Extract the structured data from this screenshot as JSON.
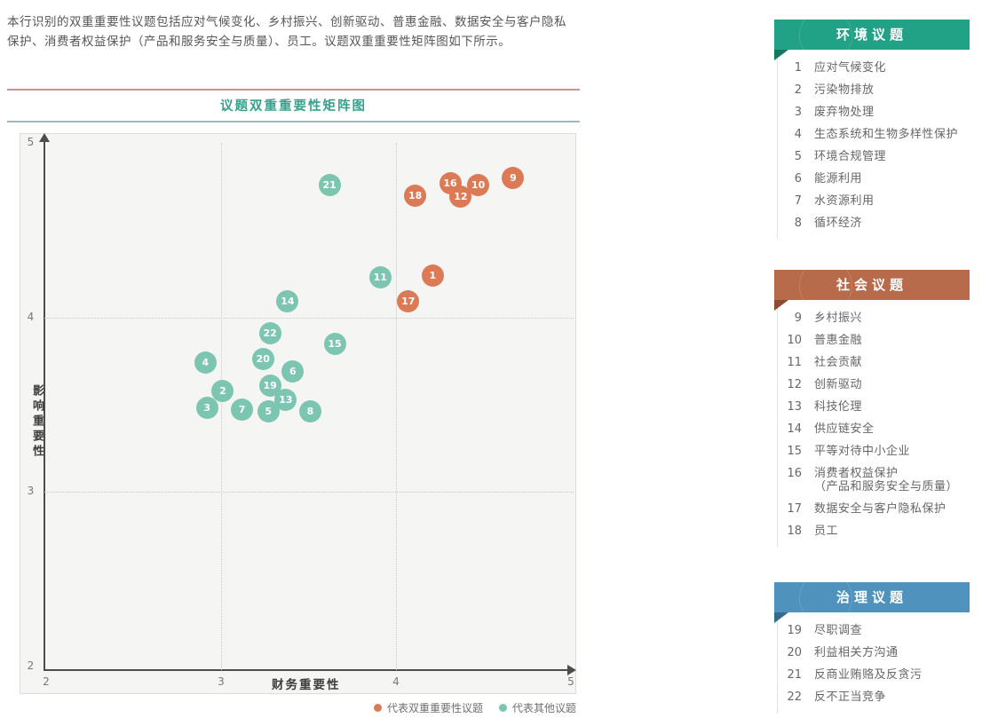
{
  "intro": "本行识别的双重重要性议题包括应对气候变化、乡村振兴、创新驱动、普惠金融、数据安全与客户隐私保护、消费者权益保护（产品和服务安全与质量）、员工。议题双重重要性矩阵图如下所示。",
  "colors": {
    "title_text": "#38a08b",
    "title_rule_top": "#cb9595",
    "title_rule_bottom": "#9eb8bf",
    "plot_background": "#f5f5f3",
    "dual_materiality": "#dc7a56",
    "other_topics": "#7cc5b1",
    "env_header": "#21a185",
    "social_header": "#b76b4a",
    "governance_header": "#4e92bd"
  },
  "chart_data": {
    "type": "scatter",
    "title": "议题双重重要性矩阵图",
    "xlabel": "财务重要性",
    "ylabel": "影响重要性",
    "xlim": [
      2,
      5
    ],
    "ylim": [
      2,
      5
    ],
    "xticks": [
      2,
      3,
      4,
      5
    ],
    "yticks": [
      2,
      3,
      4,
      5
    ],
    "grid": {
      "x_dashed": [
        3,
        4
      ],
      "y_dashed": [
        3,
        4
      ]
    },
    "legend_position": "bottom-right",
    "series": [
      {
        "name": "代表双重重要性议题",
        "color": "#dc7a56",
        "points": [
          {
            "id": 1,
            "x": 4.21,
            "y": 4.24
          },
          {
            "id": 9,
            "x": 4.67,
            "y": 4.8
          },
          {
            "id": 10,
            "x": 4.47,
            "y": 4.76
          },
          {
            "id": 16,
            "x": 4.31,
            "y": 4.77
          },
          {
            "id": 12,
            "x": 4.37,
            "y": 4.69
          },
          {
            "id": 17,
            "x": 4.07,
            "y": 4.09
          },
          {
            "id": 18,
            "x": 4.11,
            "y": 4.7
          }
        ]
      },
      {
        "name": "代表其他议题",
        "color": "#7cc5b1",
        "points": [
          {
            "id": 2,
            "x": 3.01,
            "y": 3.58
          },
          {
            "id": 3,
            "x": 2.92,
            "y": 3.48
          },
          {
            "id": 4,
            "x": 2.91,
            "y": 3.74
          },
          {
            "id": 5,
            "x": 3.27,
            "y": 3.46
          },
          {
            "id": 6,
            "x": 3.41,
            "y": 3.69
          },
          {
            "id": 7,
            "x": 3.12,
            "y": 3.47
          },
          {
            "id": 8,
            "x": 3.51,
            "y": 3.46
          },
          {
            "id": 11,
            "x": 3.91,
            "y": 4.23
          },
          {
            "id": 13,
            "x": 3.37,
            "y": 3.53
          },
          {
            "id": 14,
            "x": 3.38,
            "y": 4.09
          },
          {
            "id": 15,
            "x": 3.65,
            "y": 3.85
          },
          {
            "id": 19,
            "x": 3.28,
            "y": 3.61
          },
          {
            "id": 20,
            "x": 3.24,
            "y": 3.76
          },
          {
            "id": 21,
            "x": 3.62,
            "y": 4.76
          },
          {
            "id": 22,
            "x": 3.28,
            "y": 3.91
          }
        ]
      }
    ]
  },
  "legend": [
    {
      "label": "代表双重重要性议题",
      "color": "#dc7a56"
    },
    {
      "label": "代表其他议题",
      "color": "#7cc5b1"
    }
  ],
  "sidebar": {
    "sections": [
      {
        "title": "环境议题",
        "color": "#21a185",
        "fold_color": "#14785f",
        "items": [
          {
            "num": "1",
            "label": "应对气候变化"
          },
          {
            "num": "2",
            "label": "污染物排放"
          },
          {
            "num": "3",
            "label": "废弃物处理"
          },
          {
            "num": "4",
            "label": "生态系统和生物多样性保护"
          },
          {
            "num": "5",
            "label": "环境合规管理"
          },
          {
            "num": "6",
            "label": "能源利用"
          },
          {
            "num": "7",
            "label": "水资源利用"
          },
          {
            "num": "8",
            "label": "循环经济"
          }
        ]
      },
      {
        "title": "社会议题",
        "color": "#b76b4a",
        "fold_color": "#8a4c33",
        "items": [
          {
            "num": "9",
            "label": "乡村振兴"
          },
          {
            "num": "10",
            "label": "普惠金融"
          },
          {
            "num": "11",
            "label": "社会贡献"
          },
          {
            "num": "12",
            "label": "创新驱动"
          },
          {
            "num": "13",
            "label": "科技伦理"
          },
          {
            "num": "14",
            "label": "供应链安全"
          },
          {
            "num": "15",
            "label": "平等对待中小企业"
          },
          {
            "num": "16",
            "label": "消费者权益保护\n（产品和服务安全与质量）"
          },
          {
            "num": "17",
            "label": "数据安全与客户隐私保护"
          },
          {
            "num": "18",
            "label": "员工"
          }
        ]
      },
      {
        "title": "治理议题",
        "color": "#4e92bd",
        "fold_color": "#346a8c",
        "items": [
          {
            "num": "19",
            "label": "尽职调查"
          },
          {
            "num": "20",
            "label": "利益相关方沟通"
          },
          {
            "num": "21",
            "label": "反商业贿赂及反贪污"
          },
          {
            "num": "22",
            "label": "反不正当竞争"
          }
        ]
      }
    ]
  }
}
